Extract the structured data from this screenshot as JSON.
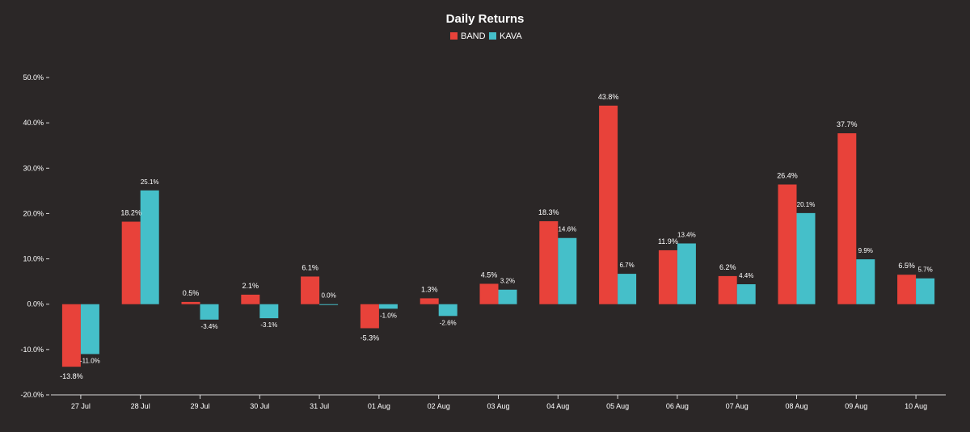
{
  "chart_data": {
    "type": "bar",
    "title": "Daily Returns",
    "xlabel": "",
    "ylabel": "",
    "ylim": [
      -20,
      50
    ],
    "yticks": [
      -20,
      -10,
      0,
      10,
      20,
      30,
      40,
      50
    ],
    "ytick_labels": [
      "-20.0%",
      "-10.0%",
      "0.0%",
      "10.0%",
      "20.0%",
      "30.0%",
      "40.0%",
      "50.0%"
    ],
    "grid": false,
    "legend_position": "top-center",
    "categories": [
      "27 Jul",
      "28 Jul",
      "29 Jul",
      "30 Jul",
      "31 Jul",
      "01 Aug",
      "02 Aug",
      "03 Aug",
      "04 Aug",
      "05 Aug",
      "06 Aug",
      "07 Aug",
      "08 Aug",
      "09 Aug",
      "10 Aug"
    ],
    "series": [
      {
        "name": "BAND",
        "color": "#e8423a",
        "values": [
          -13.8,
          18.2,
          0.5,
          2.1,
          6.1,
          -5.3,
          1.3,
          4.5,
          18.3,
          43.8,
          11.9,
          6.2,
          26.4,
          37.7,
          6.5
        ],
        "labels": [
          "-13.8%",
          "18.2%",
          "0.5%",
          "2.1%",
          "6.1%",
          "-5.3%",
          "1.3%",
          "4.5%",
          "18.3%",
          "43.8%",
          "11.9%",
          "6.2%",
          "26.4%",
          "37.7%",
          "6.5%"
        ]
      },
      {
        "name": "KAVA",
        "color": "#45bfc9",
        "values": [
          -11.0,
          25.1,
          -3.4,
          -3.1,
          0.0,
          -1.0,
          -2.6,
          3.2,
          14.6,
          6.7,
          13.4,
          4.4,
          20.1,
          9.9,
          5.7
        ],
        "labels": [
          "-11.0%",
          "25.1%",
          "-3.4%",
          "-3.1%",
          "0.0%",
          "-1.0%",
          "-2.6%",
          "3.2%",
          "14.6%",
          "6.7%",
          "13.4%",
          "4.4%",
          "20.1%",
          "9.9%",
          "5.7%"
        ]
      }
    ]
  }
}
